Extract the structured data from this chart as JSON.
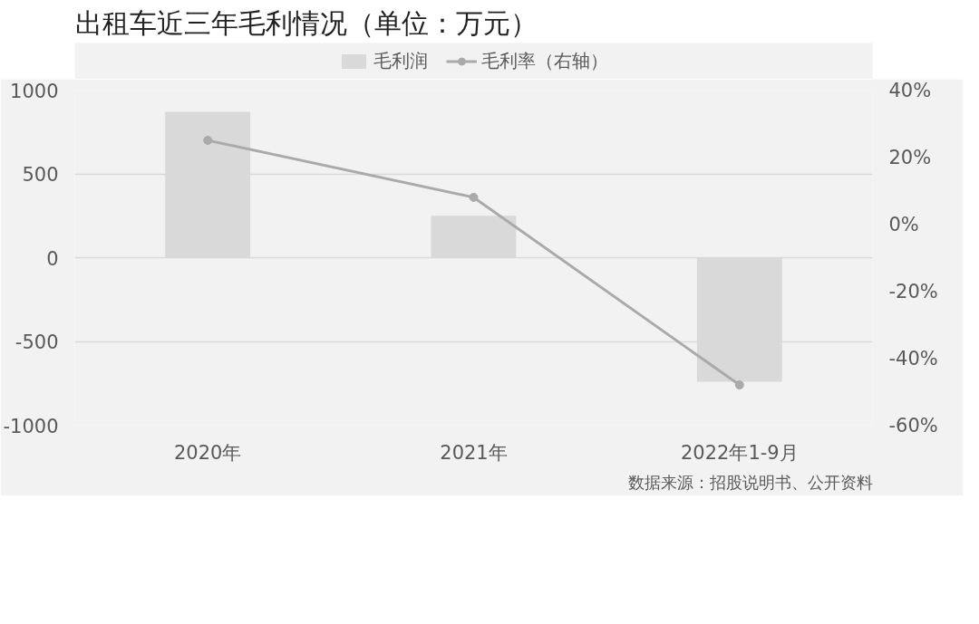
{
  "chart_data": {
    "type": "bar",
    "title": "出租车近三年毛利情况（单位：万元）",
    "categories": [
      "2020年",
      "2021年",
      "2022年1-9月"
    ],
    "series": [
      {
        "name": "毛利润",
        "color": "#d9d9d9",
        "values": [
          870,
          250,
          -740
        ]
      },
      {
        "name": "毛利率（右轴）",
        "type": "line",
        "axis": "y2",
        "color": "#aaaaaa",
        "values": [
          25,
          8,
          -48
        ]
      }
    ],
    "ylim": [
      -1000,
      1000
    ],
    "yticks": [
      -1000,
      -500,
      0,
      500,
      1000
    ],
    "y2lim": [
      -60,
      40
    ],
    "y2ticks": [
      {
        "value": -60,
        "label": "-60%"
      },
      {
        "value": -40,
        "label": "-40%"
      },
      {
        "value": -20,
        "label": "-20%"
      },
      {
        "value": 0,
        "label": "0%"
      },
      {
        "value": 20,
        "label": "20%"
      },
      {
        "value": 40,
        "label": "40%"
      }
    ],
    "grid": "y",
    "legend": "top",
    "marker": "circle",
    "line_style": "solid",
    "annotations": [
      "数据来源：招股说明书、公开资料"
    ]
  }
}
